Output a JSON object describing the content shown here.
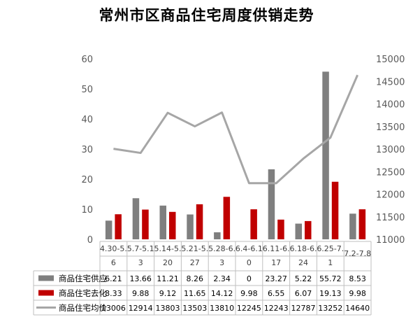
{
  "chart_data": {
    "type": "bar",
    "title": "常州市区商品住宅周度供销走势",
    "categories": [
      [
        "4.30-5.",
        "6"
      ],
      [
        "5.7-5.1",
        "3"
      ],
      [
        "5.14-5.",
        "20"
      ],
      [
        "5.21-5.",
        "27"
      ],
      [
        "5.28-6.",
        "3"
      ],
      [
        "6.4-6.1",
        "0"
      ],
      [
        "6.11-6.",
        "17"
      ],
      [
        "6.18-6.",
        "24"
      ],
      [
        "6.25-7.",
        "1"
      ],
      [
        "7.2-7.8",
        ""
      ]
    ],
    "y_left": {
      "range": [
        0,
        60
      ],
      "ticks": [
        "0",
        "10",
        "20",
        "30",
        "40",
        "50",
        "60"
      ]
    },
    "y_right": {
      "range": [
        11000,
        15000
      ],
      "ticks": [
        "11000",
        "11500",
        "12000",
        "12500",
        "13000",
        "13500",
        "14000",
        "14500",
        "15000"
      ]
    },
    "series": [
      {
        "name": "商品住宅供应",
        "type": "bar",
        "axis": "left",
        "color": "#7f7f7f",
        "values": [
          6.21,
          13.66,
          11.21,
          8.26,
          2.34,
          0,
          23.27,
          5.22,
          55.72,
          8.53
        ],
        "labels": [
          "6.21",
          "13.66",
          "11.21",
          "8.26",
          "2.34",
          "0",
          "23.27",
          "5.22",
          "55.72",
          "8.53"
        ]
      },
      {
        "name": "商品住宅去化",
        "type": "bar",
        "axis": "left",
        "color": "#c00000",
        "values": [
          8.33,
          9.88,
          9.12,
          11.65,
          14.12,
          9.98,
          6.55,
          6.07,
          19.13,
          9.98
        ],
        "labels": [
          "8.33",
          "9.88",
          "9.12",
          "11.65",
          "14.12",
          "9.98",
          "6.55",
          "6.07",
          "19.13",
          "9.98"
        ]
      },
      {
        "name": "商品住宅均价",
        "type": "line",
        "axis": "right",
        "color": "#a6a6a6",
        "values": [
          13006,
          12914,
          13803,
          13503,
          13810,
          12245,
          12243,
          12787,
          13252,
          14640
        ],
        "labels": [
          "13006",
          "12914",
          "13803",
          "13503",
          "13810",
          "12245",
          "12243",
          "12787",
          "13252",
          "14640"
        ]
      }
    ],
    "grid": false,
    "legend": "table-bottom"
  }
}
